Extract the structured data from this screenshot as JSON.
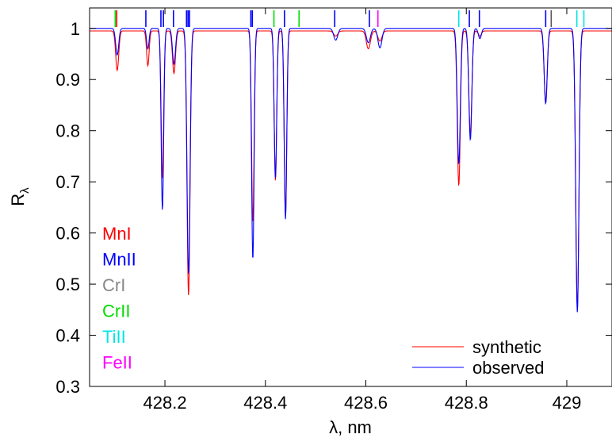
{
  "chart_data": {
    "type": "line",
    "title": "",
    "xlabel": "λ, nm",
    "ylabel": "R",
    "ylabel_subscript": "λ",
    "xlim": [
      428.05,
      429.09
    ],
    "ylim": [
      0.3,
      1.04
    ],
    "xticks": [
      428.2,
      428.4,
      428.6,
      428.8,
      429
    ],
    "xtick_labels": [
      "428.2",
      "428.4",
      "428.6",
      "428.8",
      "429"
    ],
    "yticks": [
      0.3,
      0.4,
      0.5,
      0.6,
      0.7,
      0.8,
      0.9,
      1
    ],
    "ytick_labels": [
      "0.3",
      "0.4",
      "0.5",
      "0.6",
      "0.7",
      "0.8",
      "0.9",
      "1"
    ],
    "grid": false,
    "legend_position": "bottom-right",
    "continuum": {
      "synthetic": 0.995,
      "observed": 1.0
    },
    "series": [
      {
        "name": "synthetic",
        "color": "#ff0000",
        "lines": [
          [
            428.105,
            0.918,
            0.003
          ],
          [
            428.166,
            0.927,
            0.0025
          ],
          [
            428.195,
            0.707,
            0.0025
          ],
          [
            428.218,
            0.912,
            0.003
          ],
          [
            428.247,
            0.478,
            0.003
          ],
          [
            428.375,
            0.62,
            0.0025
          ],
          [
            428.42,
            0.703,
            0.0025
          ],
          [
            428.44,
            0.63,
            0.0025
          ],
          [
            428.54,
            0.985,
            0.004
          ],
          [
            428.605,
            0.96,
            0.004
          ],
          [
            428.628,
            0.975,
            0.004
          ],
          [
            428.785,
            0.693,
            0.003
          ],
          [
            428.808,
            0.795,
            0.003
          ],
          [
            428.827,
            0.985,
            0.003
          ],
          [
            428.958,
            0.855,
            0.003
          ],
          [
            429.021,
            0.455,
            0.0032
          ]
        ]
      },
      {
        "name": "observed",
        "color": "#0000ff",
        "lines": [
          [
            428.105,
            0.948,
            0.003
          ],
          [
            428.166,
            0.96,
            0.0025
          ],
          [
            428.195,
            0.645,
            0.0025
          ],
          [
            428.218,
            0.93,
            0.003
          ],
          [
            428.247,
            0.52,
            0.003
          ],
          [
            428.375,
            0.548,
            0.0025
          ],
          [
            428.42,
            0.708,
            0.0025
          ],
          [
            428.44,
            0.627,
            0.0025
          ],
          [
            428.54,
            0.977,
            0.004
          ],
          [
            428.605,
            0.972,
            0.004
          ],
          [
            428.628,
            0.962,
            0.004
          ],
          [
            428.785,
            0.735,
            0.003
          ],
          [
            428.808,
            0.782,
            0.003
          ],
          [
            428.827,
            0.98,
            0.003
          ],
          [
            428.958,
            0.853,
            0.003
          ],
          [
            429.021,
            0.445,
            0.0032
          ]
        ]
      }
    ],
    "line_markers": [
      {
        "x": 428.101,
        "color": "#00dd00"
      },
      {
        "x": 428.104,
        "color": "#ff0000"
      },
      {
        "x": 428.162,
        "color": "#0000ff"
      },
      {
        "x": 428.192,
        "color": "#0000ff"
      },
      {
        "x": 428.197,
        "color": "#0000ff"
      },
      {
        "x": 428.217,
        "color": "#0000ff"
      },
      {
        "x": 428.243,
        "color": "#0000ff"
      },
      {
        "x": 428.246,
        "color": "#0000ff"
      },
      {
        "x": 428.249,
        "color": "#0000ff"
      },
      {
        "x": 428.371,
        "color": "#0000ff"
      },
      {
        "x": 428.374,
        "color": "#0000ff"
      },
      {
        "x": 428.417,
        "color": "#00dd00"
      },
      {
        "x": 428.438,
        "color": "#0000ff"
      },
      {
        "x": 428.467,
        "color": "#00dd00"
      },
      {
        "x": 428.538,
        "color": "#0000ff"
      },
      {
        "x": 428.607,
        "color": "#0000ff"
      },
      {
        "x": 428.624,
        "color": "#ff00ff"
      },
      {
        "x": 428.785,
        "color": "#00e5e5"
      },
      {
        "x": 428.806,
        "color": "#0000ff"
      },
      {
        "x": 428.826,
        "color": "#0000ff"
      },
      {
        "x": 428.958,
        "color": "#0000ff"
      },
      {
        "x": 428.969,
        "color": "#555555"
      },
      {
        "x": 429.02,
        "color": "#00e5e5"
      },
      {
        "x": 429.034,
        "color": "#00e5e5"
      }
    ],
    "element_labels": [
      {
        "text": "MnI",
        "color": "#ff0000"
      },
      {
        "text": "MnII",
        "color": "#0000ff"
      },
      {
        "text": "CrI",
        "color": "#888888"
      },
      {
        "text": "CrII",
        "color": "#00dd00"
      },
      {
        "text": "TiII",
        "color": "#00e5e5"
      },
      {
        "text": "FeII",
        "color": "#ff00ff"
      }
    ]
  }
}
